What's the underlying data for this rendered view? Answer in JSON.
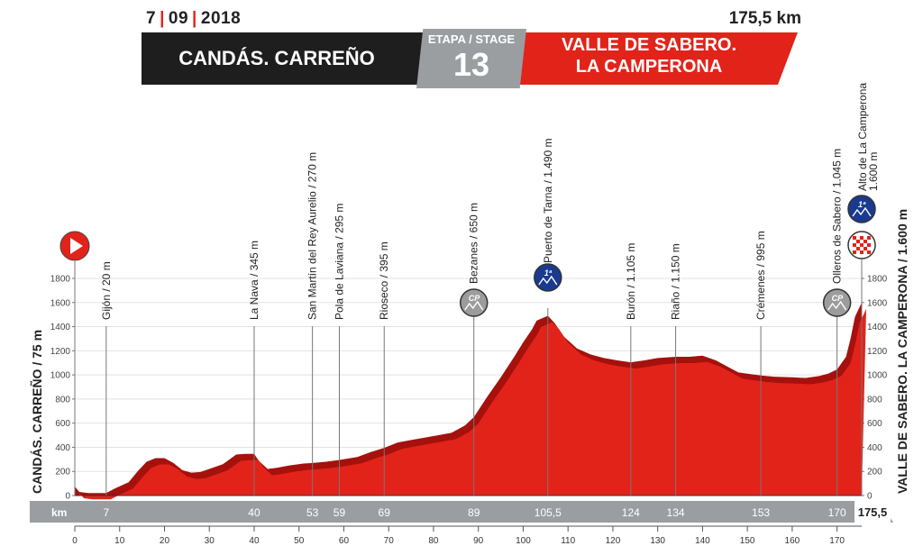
{
  "header": {
    "date_day": "7",
    "date_month": "09",
    "date_year": "2018",
    "distance": "175,5 km",
    "start_town": "CANDÁS. CARREÑO",
    "finish_town_line1": "VALLE DE SABERO.",
    "finish_town_line2": "LA CAMPERONA",
    "stage_label": "ETAPA / STAGE",
    "stage_number": "13"
  },
  "colors": {
    "profile_red": "#e2231a",
    "profile_shadow": "#a5110c",
    "band_black": "#1e1e1e",
    "axis_gray": "#9b9ea1",
    "climb_blue": "#1a3a8f"
  },
  "chart_data": {
    "type": "area",
    "title": "",
    "xlabel": "km",
    "ylabel": "",
    "xlim": [
      0,
      175.5
    ],
    "ylim": [
      0,
      1800
    ],
    "y_ticks": [
      0,
      200,
      400,
      600,
      800,
      1000,
      1200,
      1400,
      1600,
      1800
    ],
    "x_ticks": [
      0,
      10,
      20,
      30,
      40,
      50,
      60,
      70,
      80,
      90,
      100,
      110,
      120,
      130,
      140,
      150,
      160,
      170
    ],
    "start_label": "CANDÁS. CARREÑO / 75 m",
    "finish_label": "VALLE DE SABERO. LA CAMPERONA / 1.600 m",
    "axis_unit": "km",
    "total_distance_label": "175,5",
    "profile": {
      "x": [
        0,
        1,
        3,
        7,
        9,
        12,
        14,
        16,
        18,
        20,
        22,
        24,
        26,
        28,
        30,
        33,
        36,
        38,
        40,
        41,
        43,
        45,
        48,
        51,
        53,
        56,
        59,
        63,
        66,
        69,
        72,
        75,
        78,
        81,
        84,
        87,
        89,
        92,
        95,
        98,
        100,
        102,
        103,
        105.5,
        107,
        109,
        112,
        115,
        118,
        121,
        124,
        127,
        130,
        134,
        137,
        140,
        143,
        146,
        148,
        150,
        153,
        156,
        160,
        163,
        166,
        168,
        170,
        172,
        173,
        174,
        175.5
      ],
      "y": [
        75,
        30,
        20,
        20,
        60,
        110,
        200,
        280,
        310,
        310,
        270,
        210,
        190,
        195,
        220,
        260,
        340,
        345,
        345,
        290,
        220,
        230,
        250,
        265,
        270,
        280,
        295,
        320,
        360,
        395,
        440,
        460,
        480,
        500,
        520,
        580,
        650,
        820,
        980,
        1150,
        1270,
        1380,
        1450,
        1490,
        1430,
        1320,
        1220,
        1170,
        1140,
        1120,
        1105,
        1120,
        1140,
        1150,
        1150,
        1160,
        1120,
        1060,
        1020,
        1010,
        995,
        985,
        980,
        975,
        990,
        1010,
        1045,
        1150,
        1300,
        1480,
        1600
      ]
    },
    "locations": [
      {
        "name": "Gijón / 20 m",
        "km": 7,
        "km_label": "7",
        "alt": 20
      },
      {
        "name": "La Nava / 345 m",
        "km": 40,
        "km_label": "40",
        "alt": 345
      },
      {
        "name": "San Martín del Rey Aurelio / 270 m",
        "km": 53,
        "km_label": "53",
        "alt": 270
      },
      {
        "name": "Pola de Laviana / 295 m",
        "km": 59,
        "km_label": "59",
        "alt": 295
      },
      {
        "name": "Rioseco / 395 m",
        "km": 69,
        "km_label": "69",
        "alt": 395
      },
      {
        "name": "Bezanes / 650 m",
        "km": 89,
        "km_label": "89",
        "alt": 650,
        "category": "CP"
      },
      {
        "name": "Puerto de Tarna / 1.490 m",
        "km": 105.5,
        "km_label": "105,5",
        "alt": 1490,
        "category": "1ª"
      },
      {
        "name": "Burón / 1.105 m",
        "km": 124,
        "km_label": "124",
        "alt": 1105
      },
      {
        "name": "Riaño / 1.150 m",
        "km": 134,
        "km_label": "134",
        "alt": 1150
      },
      {
        "name": "Crémenes / 995 m",
        "km": 153,
        "km_label": "153",
        "alt": 995
      },
      {
        "name": "Olleros de Sabero / 1.045 m",
        "km": 170,
        "km_label": "170",
        "alt": 1045,
        "category": "CP"
      }
    ],
    "finish_climb": {
      "name_line1": "Alto de La Camperona",
      "name_line2": "1.600 m",
      "category": "1ª"
    }
  }
}
